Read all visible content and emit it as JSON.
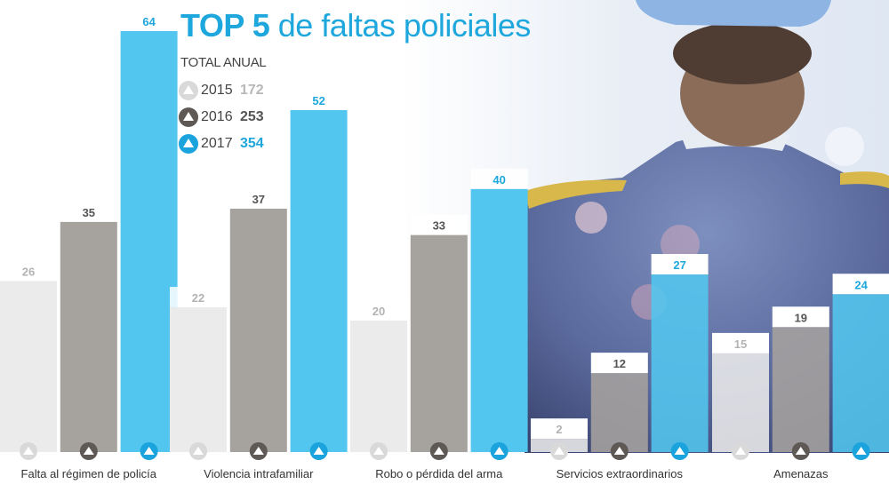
{
  "chart_data": {
    "type": "bar",
    "title_bold": "TOP 5",
    "title_rest": "de faltas policiales",
    "subtitle": "TOTAL ANUAL",
    "categories": [
      "Falta al régimen de policía",
      "Violencia intrafamiliar",
      "Robo o pérdida del arma",
      "Servicios extraordinarios",
      "Amenazas"
    ],
    "series": [
      {
        "name": "2015",
        "total": "172",
        "values": [
          26,
          22,
          20,
          2,
          15
        ],
        "color": "#ebebeb",
        "label_color": "#b3b3b3",
        "icon_color": "#d9d9d9"
      },
      {
        "name": "2016",
        "total": "253",
        "values": [
          35,
          37,
          33,
          12,
          19
        ],
        "color": "#a6a29e",
        "label_color": "#555555",
        "icon_color": "#5e5955"
      },
      {
        "name": "2017",
        "total": "354",
        "values": [
          64,
          52,
          40,
          27,
          24
        ],
        "color": "#52c6ee",
        "label_color": "#1ea7dc",
        "icon_color": "#1aa3dc"
      }
    ],
    "ylim": [
      0,
      64
    ],
    "grid": false,
    "legend_position": "top-left"
  }
}
